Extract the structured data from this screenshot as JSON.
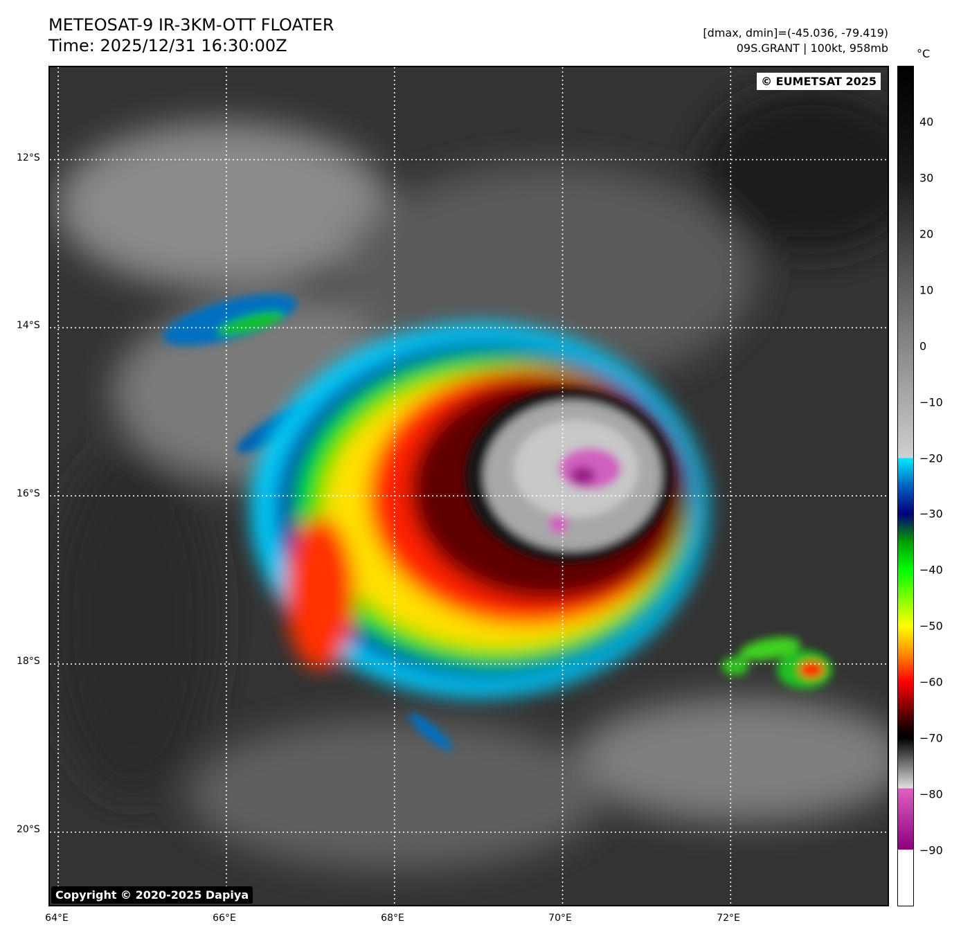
{
  "header": {
    "title_line1": "METEOSAT-9 IR-3KM-OTT FLOATER",
    "title_line2": "Time: 2025/12/31 16:30:00Z",
    "info_line1": "[dmax, dmin]=(-45.036, -79.419)",
    "info_line2": "09S.GRANT | 100kt, 958mb"
  },
  "map": {
    "eumetsat_badge": "© EUMETSAT 2025",
    "copyright_badge": "Copyright © 2020-2025 Dapiya",
    "lat_labels": [
      "12°S",
      "14°S",
      "16°S",
      "18°S",
      "20°S"
    ],
    "lon_labels": [
      "64°E",
      "66°E",
      "68°E",
      "70°E",
      "72°E"
    ],
    "extent": {
      "lon_min": 63.9,
      "lon_max": 73.9,
      "lat_top": -10.9,
      "lat_bottom": -20.9
    },
    "storm_center": {
      "lon": 70.3,
      "lat": -15.8
    },
    "grid_lats": [
      -12,
      -14,
      -16,
      -18,
      -20
    ],
    "grid_lons": [
      64,
      66,
      68,
      70,
      72
    ]
  },
  "colorbar": {
    "unit": "°C",
    "tick_labels": [
      "40",
      "30",
      "20",
      "10",
      "0",
      "−10",
      "−20",
      "−30",
      "−40",
      "−50",
      "−60",
      "−70",
      "−80",
      "−90"
    ],
    "tick_values": [
      40,
      30,
      20,
      10,
      0,
      -10,
      -20,
      -30,
      -40,
      -50,
      -60,
      -70,
      -80,
      -90
    ],
    "range": [
      -100,
      50
    ],
    "stops": [
      {
        "t": 50,
        "color": "#000000"
      },
      {
        "t": 30,
        "color": "#1a1a1a"
      },
      {
        "t": -20,
        "color": "#d0d0d0"
      },
      {
        "t": -20,
        "color": "#00eaff"
      },
      {
        "t": -25,
        "color": "#0060c0"
      },
      {
        "t": -30,
        "color": "#00007a"
      },
      {
        "t": -35,
        "color": "#00a000"
      },
      {
        "t": -40,
        "color": "#00ff00"
      },
      {
        "t": -50,
        "color": "#ffff00"
      },
      {
        "t": -55,
        "color": "#ff8c00"
      },
      {
        "t": -60,
        "color": "#ff0000"
      },
      {
        "t": -68,
        "color": "#200000"
      },
      {
        "t": -70,
        "color": "#000000"
      },
      {
        "t": -79,
        "color": "#e0e0e0"
      },
      {
        "t": -79,
        "color": "#e060c0"
      },
      {
        "t": -90,
        "color": "#8a0080"
      },
      {
        "t": -90,
        "color": "#ffffff"
      }
    ]
  }
}
